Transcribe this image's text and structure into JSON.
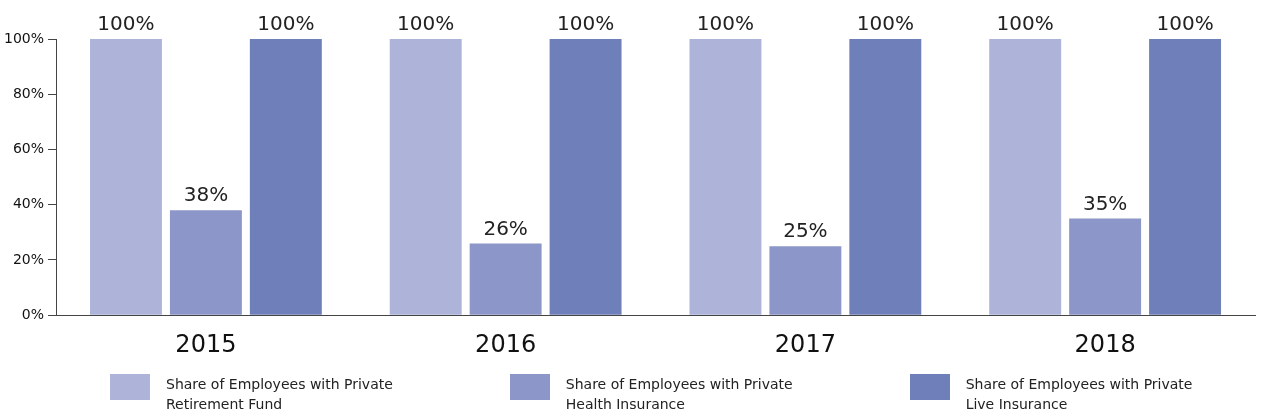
{
  "chart_data": {
    "type": "bar",
    "categories": [
      "2015",
      "2016",
      "2017",
      "2018"
    ],
    "series": [
      {
        "name": "Share of Employees with Private Retirement Fund",
        "color": "#aeb3d9",
        "values": [
          100,
          100,
          100,
          100
        ],
        "value_labels": [
          "100%",
          "100%",
          "100%",
          "100%"
        ]
      },
      {
        "name": "Share of Employees with Private Health Insurance",
        "color": "#8c96c8",
        "values": [
          38,
          26,
          25,
          35
        ],
        "value_labels": [
          "38%",
          "26%",
          "25%",
          "35%"
        ]
      },
      {
        "name": "Share of Employees with Private Live Insurance",
        "color": "#6e7fb9",
        "values": [
          100,
          100,
          100,
          100
        ],
        "value_labels": [
          "100%",
          "100%",
          "100%",
          "100%"
        ]
      }
    ],
    "ylim": [
      0,
      100
    ],
    "yticks": [
      {
        "value": 0,
        "label": "0%"
      },
      {
        "value": 20,
        "label": "20%"
      },
      {
        "value": 40,
        "label": "40%"
      },
      {
        "value": 60,
        "label": "60%"
      },
      {
        "value": 80,
        "label": "80%"
      },
      {
        "value": 100,
        "label": "100%"
      }
    ],
    "grid": false,
    "legend": "bottom"
  }
}
